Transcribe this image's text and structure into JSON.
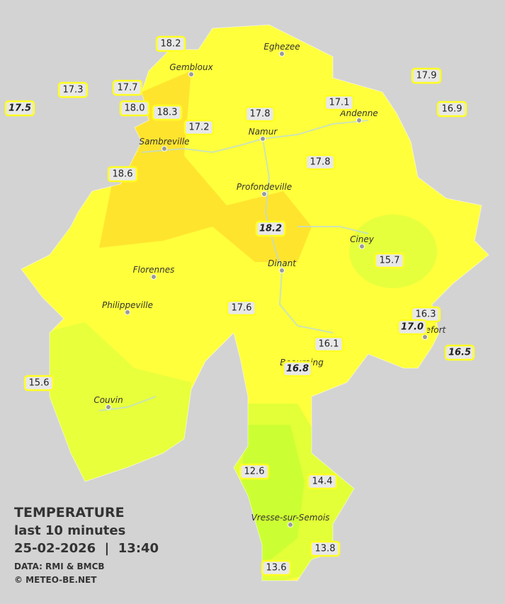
{
  "legend": {
    "title": "TEMPERATURE",
    "period": "last 10 minutes",
    "datetime": "25-02-2026  |  13:40",
    "source": "DATA: RMI & BMCB",
    "copyright": "© METEO-BE.NET"
  },
  "cities": [
    {
      "name": "Eghezee"
    },
    {
      "name": "Gembloux"
    },
    {
      "name": "Andenne"
    },
    {
      "name": "Namur"
    },
    {
      "name": "Sambreville"
    },
    {
      "name": "Profondeville"
    },
    {
      "name": "Ciney"
    },
    {
      "name": "Dinant"
    },
    {
      "name": "Florennes"
    },
    {
      "name": "Philippeville"
    },
    {
      "name": "Couvin"
    },
    {
      "name": "Vresse-sur-Semois"
    },
    {
      "name": "Beauraing"
    },
    {
      "name": "Rochefort"
    }
  ],
  "readings": [
    {
      "label": "18.2",
      "italic": false
    },
    {
      "label": "17.3",
      "italic": false
    },
    {
      "label": "17.7",
      "italic": false
    },
    {
      "label": "17.5",
      "italic": true
    },
    {
      "label": "18.0",
      "italic": false
    },
    {
      "label": "18.3",
      "italic": false
    },
    {
      "label": "17.2",
      "italic": false
    },
    {
      "label": "17.8",
      "italic": false
    },
    {
      "label": "17.1",
      "italic": false
    },
    {
      "label": "17.9",
      "italic": false
    },
    {
      "label": "16.9",
      "italic": false
    },
    {
      "label": "17.8",
      "italic": false
    },
    {
      "label": "18.6",
      "italic": false
    },
    {
      "label": "18.2",
      "italic": true
    },
    {
      "label": "15.7",
      "italic": false
    },
    {
      "label": "17.6",
      "italic": false
    },
    {
      "label": "16.3",
      "italic": false
    },
    {
      "label": "17.0",
      "italic": true
    },
    {
      "label": "16.1",
      "italic": false
    },
    {
      "label": "16.8",
      "italic": true
    },
    {
      "label": "16.5",
      "italic": true
    },
    {
      "label": "15.6",
      "italic": false
    },
    {
      "label": "12.6",
      "italic": false
    },
    {
      "label": "14.4",
      "italic": false
    },
    {
      "label": "13.8",
      "italic": false
    },
    {
      "label": "13.6",
      "italic": false
    }
  ]
}
